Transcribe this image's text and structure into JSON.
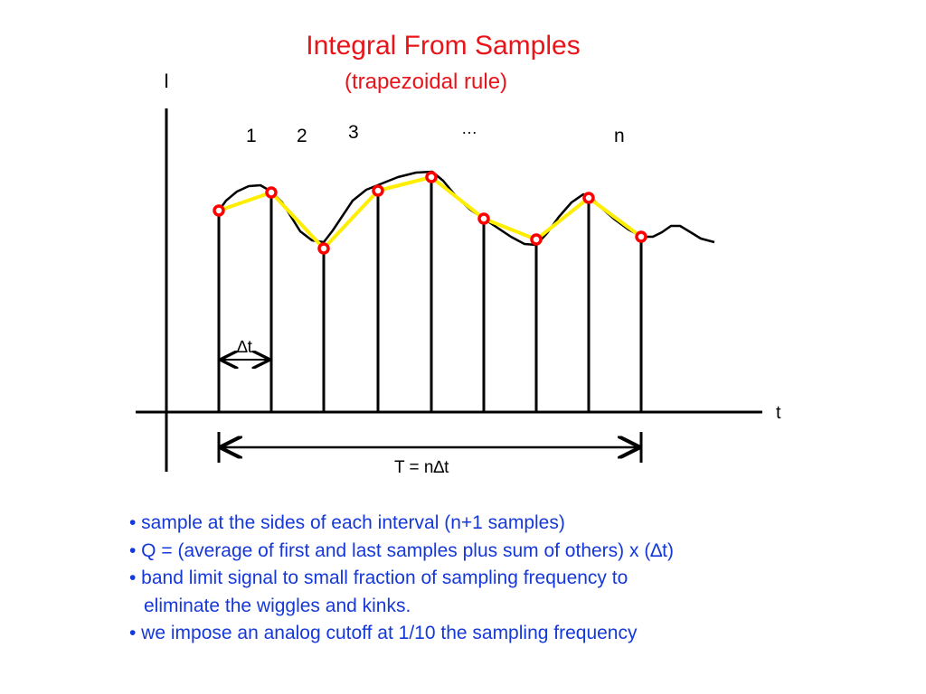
{
  "title": "Integral From Samples",
  "subtitle": "(trapezoidal rule)",
  "axes": {
    "y_label": "I",
    "x_label": "t"
  },
  "interval_labels": [
    "1",
    "2",
    "3",
    "…",
    "n"
  ],
  "delta_label": "∆t",
  "period_label": "T = n∆t",
  "colors": {
    "title": "#e8141a",
    "text": "#1538d9",
    "trapezoid": "#ffee00",
    "sample_marker": "#ff0000",
    "curve": "#000000"
  },
  "bullets": [
    "• sample at the sides of each interval (n+1 samples)",
    "• Q = (average of first and last samples plus sum of others) x (∆t)",
    "• band limit signal to small fraction of sampling frequency to",
    "eliminate the wiggles and kinks.",
    "• we impose an analog cutoff at 1/10 the sampling frequency"
  ]
}
